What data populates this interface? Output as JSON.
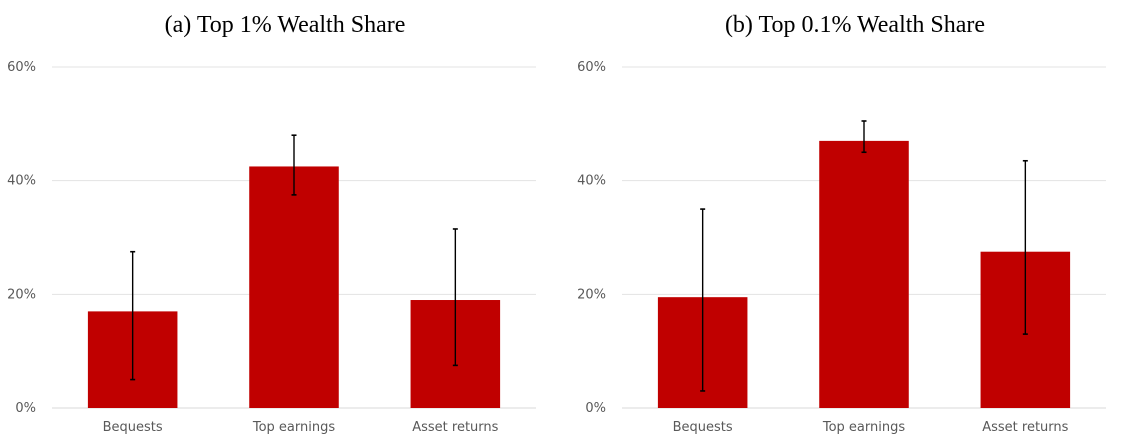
{
  "chart_data": [
    {
      "type": "bar",
      "title": "(a) Top 1% Wealth Share",
      "categories": [
        "Bequests",
        "Top earnings",
        "Asset returns"
      ],
      "values": [
        17,
        42.5,
        19
      ],
      "error_low": [
        5,
        37.5,
        7.5
      ],
      "error_high": [
        27.5,
        48,
        31.5
      ],
      "ylim": [
        0,
        60
      ],
      "yticks": [
        "0%",
        "20%",
        "40%",
        "60%"
      ],
      "ytick_values": [
        0,
        20,
        40,
        60
      ],
      "xlabel": "",
      "ylabel": "",
      "grid": true,
      "bar_color": "#C00000"
    },
    {
      "type": "bar",
      "title": "(b) Top 0.1% Wealth Share",
      "categories": [
        "Bequests",
        "Top earnings",
        "Asset returns"
      ],
      "values": [
        19.5,
        47,
        27.5
      ],
      "error_low": [
        3,
        45,
        13
      ],
      "error_high": [
        35,
        50.5,
        43.5
      ],
      "ylim": [
        0,
        60
      ],
      "yticks": [
        "0%",
        "20%",
        "40%",
        "60%"
      ],
      "ytick_values": [
        0,
        20,
        40,
        60
      ],
      "xlabel": "",
      "ylabel": "",
      "grid": true,
      "bar_color": "#C00000"
    }
  ]
}
